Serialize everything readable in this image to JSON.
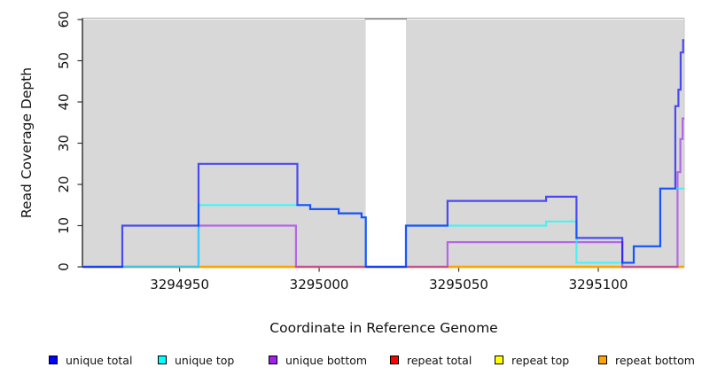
{
  "chart_data": {
    "type": "line",
    "subtype": "step-after-coverage-plot",
    "title": "",
    "xlabel": "Coordinate in Reference Genome",
    "ylabel": "Read Coverage Depth",
    "xlim": [
      3294915.2,
      3295130.8
    ],
    "ylim": [
      0,
      60
    ],
    "x_ticks": [
      3294950,
      3295000,
      3295050,
      3295100
    ],
    "y_ticks": [
      0,
      10,
      20,
      30,
      40,
      50,
      60
    ],
    "grid": false,
    "legend_position": "bottom",
    "background_bands": {
      "color": "#d8d8d8",
      "ranges": [
        [
          3294915.2,
          3295016.7
        ],
        [
          3295031.1,
          3295130.8
        ]
      ]
    },
    "masked_gap": {
      "range": [
        3295016.7,
        3295031.1
      ],
      "color": "#ffffff",
      "border_color": "#8f8f8f"
    },
    "series": [
      {
        "name": "repeat total",
        "color": "#ff0000",
        "draw": "rgb(255,0,0)",
        "order": 1,
        "points": [
          [
            3294915.2,
            0
          ]
        ]
      },
      {
        "name": "repeat top",
        "color": "#ffff00",
        "draw": "rgb(255,255,0)",
        "order": 2,
        "points": [
          [
            3294915.2,
            0
          ]
        ]
      },
      {
        "name": "repeat bottom",
        "color": "#ffa500",
        "draw": "rgb(255,165,0)",
        "order": 3,
        "points": [
          [
            3294915.2,
            0
          ]
        ]
      },
      {
        "name": "unique bottom",
        "color": "#a020f0",
        "draw": "rgba(160,32,240,0.62)",
        "order": 4,
        "points": [
          [
            3294915.2,
            0
          ],
          [
            3294956.8,
            10
          ],
          [
            3294991.7,
            0
          ],
          [
            3295046,
            6
          ],
          [
            3295108.6,
            0
          ],
          [
            3295128.4,
            23
          ],
          [
            3295129.4,
            31
          ],
          [
            3295130.2,
            36
          ]
        ]
      },
      {
        "name": "unique top",
        "color": "#00ffff",
        "draw": "rgba(0,255,255,0.66)",
        "order": 5,
        "points": [
          [
            3294915.2,
            0
          ],
          [
            3294956.8,
            15
          ],
          [
            3294996.8,
            14
          ],
          [
            3295007,
            13
          ],
          [
            3295015.2,
            12
          ],
          [
            3295016.7,
            0
          ],
          [
            3295031.1,
            10
          ],
          [
            3295081.3,
            11
          ],
          [
            3295092.2,
            1
          ],
          [
            3295112.7,
            5
          ],
          [
            3295122.2,
            19
          ]
        ]
      },
      {
        "name": "unique total",
        "color": "#0000ff",
        "draw": "rgba(0,0,255,0.66)",
        "order": 6,
        "points": [
          [
            3294915.2,
            0
          ],
          [
            3294929.5,
            10
          ],
          [
            3294956.8,
            25
          ],
          [
            3294992.2,
            15
          ],
          [
            3294996.8,
            14
          ],
          [
            3295007,
            13
          ],
          [
            3295015.2,
            12
          ],
          [
            3295016.7,
            0
          ],
          [
            3295031.1,
            10
          ],
          [
            3295046,
            16
          ],
          [
            3295081.3,
            17
          ],
          [
            3295092.2,
            7
          ],
          [
            3295108.6,
            1
          ],
          [
            3295112.7,
            5
          ],
          [
            3295122.2,
            19
          ],
          [
            3295127.6,
            39
          ],
          [
            3295128.7,
            43
          ],
          [
            3295129.5,
            52
          ],
          [
            3295130.4,
            55
          ]
        ]
      }
    ],
    "legend": {
      "entries": [
        {
          "label": "unique total",
          "color": "#0000ff"
        },
        {
          "label": "unique top",
          "color": "#00ffff"
        },
        {
          "label": "unique bottom",
          "color": "#a020f0"
        },
        {
          "label": "repeat total",
          "color": "#ff0000"
        },
        {
          "label": "repeat top",
          "color": "#ffff00"
        },
        {
          "label": "repeat bottom",
          "color": "#ffa500"
        }
      ]
    }
  }
}
